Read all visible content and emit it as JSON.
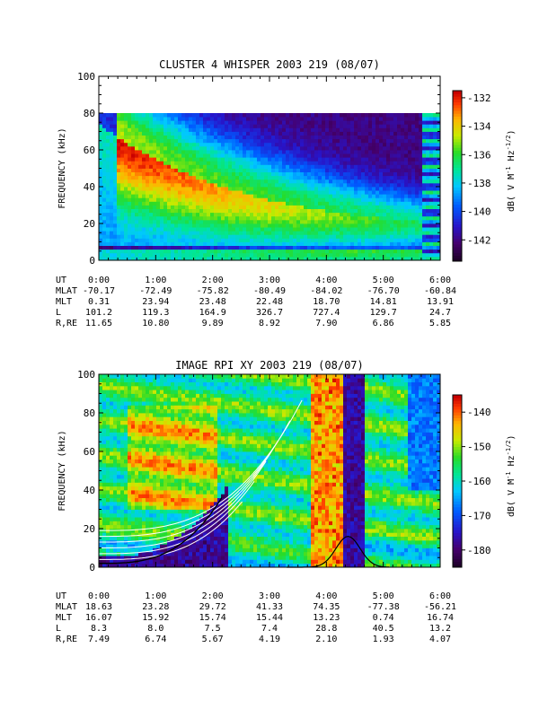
{
  "chart_data": [
    {
      "type": "heatmap",
      "title": "CLUSTER 4 WHISPER 2003 219 (08/07)",
      "ylabel": "FREQUENCY (kHz)",
      "ylim": [
        0,
        100
      ],
      "yticks": [
        0,
        20,
        40,
        60,
        80,
        100
      ],
      "data_ymax": 80,
      "xlim_hours": [
        0,
        6
      ],
      "colorbar": {
        "label": "dB( V M⁻¹ Hz⁻¹ᐟ²)",
        "label_parts": [
          "dB( V M",
          "-1",
          " Hz",
          "-1/2",
          ")"
        ],
        "range": [
          -143.5,
          -131.5
        ],
        "ticks": [
          -132,
          -134,
          -136,
          -138,
          -140,
          -142
        ]
      },
      "ephemeris": {
        "rows": [
          {
            "name": "UT",
            "values": [
              "0:00",
              "1:00",
              "2:00",
              "3:00",
              "4:00",
              "5:00",
              "6:00"
            ]
          },
          {
            "name": "MLAT",
            "values": [
              "-70.17",
              "-72.49",
              "-75.82",
              "-80.49",
              "-84.02",
              "-76.70",
              "-60.84"
            ]
          },
          {
            "name": "MLT",
            "values": [
              "0.31",
              "23.94",
              "23.48",
              "22.48",
              "18.70",
              "14.81",
              "13.91"
            ]
          },
          {
            "name": "L",
            "values": [
              "101.2",
              "119.3",
              "164.9",
              "326.7",
              "727.4",
              "129.7",
              "24.7"
            ]
          },
          {
            "name": "R,RE",
            "values": [
              "11.65",
              "10.80",
              "9.89",
              "8.92",
              "7.90",
              "6.86",
              "5.85"
            ]
          }
        ]
      }
    },
    {
      "type": "heatmap",
      "title": "IMAGE RPI XY 2003 219 (08/07)",
      "ylabel": "FREQUENCY (kHz)",
      "ylim": [
        0,
        100
      ],
      "yticks": [
        0,
        20,
        40,
        60,
        80,
        100
      ],
      "xlim_hours": [
        0,
        6
      ],
      "colorbar": {
        "label": "dB( V M⁻¹ Hz⁻¹ᐟ²)",
        "label_parts": [
          "dB( V M",
          "-1",
          " Hz",
          "-1/2",
          ")"
        ],
        "range": [
          -185,
          -135
        ],
        "ticks": [
          -140,
          -150,
          -160,
          -170,
          -180
        ]
      },
      "ephemeris": {
        "rows": [
          {
            "name": "UT",
            "values": [
              "0:00",
              "1:00",
              "2:00",
              "3:00",
              "4:00",
              "5:00",
              "6:00"
            ]
          },
          {
            "name": "MLAT",
            "values": [
              "18.63",
              "23.28",
              "29.72",
              "41.33",
              "74.35",
              "-77.38",
              "-56.21"
            ]
          },
          {
            "name": "MLT",
            "values": [
              "16.07",
              "15.92",
              "15.74",
              "15.44",
              "13.23",
              "0.74",
              "16.74"
            ]
          },
          {
            "name": "L",
            "values": [
              "8.3",
              "8.0",
              "7.5",
              "7.4",
              "28.8",
              "40.5",
              "13.2"
            ]
          },
          {
            "name": "R,RE",
            "values": [
              "7.49",
              "6.74",
              "5.67",
              "4.19",
              "2.10",
              "1.93",
              "4.07"
            ]
          }
        ]
      }
    }
  ],
  "colors": {
    "background": "#ffffff",
    "foreground": "#000000",
    "overlay_curve_white": "#ffffff",
    "overlay_curve_black": "#000000"
  }
}
